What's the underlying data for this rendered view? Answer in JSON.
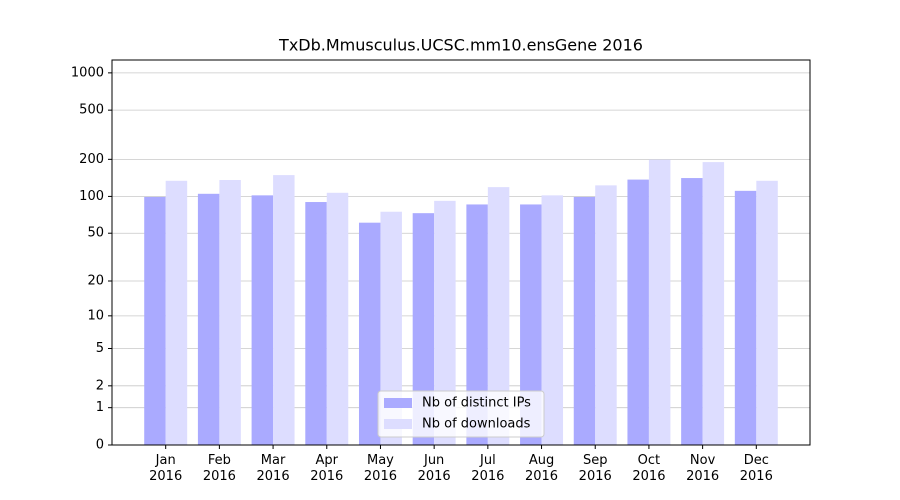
{
  "chart_data": {
    "type": "bar",
    "title": "TxDb.Mmusculus.UCSC.mm10.ensGene 2016",
    "categories": [
      "Jan 2016",
      "Feb 2016",
      "Mar 2016",
      "Apr 2016",
      "May 2016",
      "Jun 2016",
      "Jul 2016",
      "Aug 2016",
      "Sep 2016",
      "Oct 2016",
      "Nov 2016",
      "Dec 2016"
    ],
    "series": [
      {
        "name": "Nb of distinct IPs",
        "color": "#aaaaff",
        "values": [
          99,
          105,
          102,
          90,
          61,
          73,
          86,
          86,
          99,
          137,
          141,
          111
        ]
      },
      {
        "name": "Nb of downloads",
        "color": "#ddddff",
        "values": [
          134,
          136,
          149,
          107,
          75,
          92,
          119,
          102,
          123,
          199,
          190,
          134
        ]
      }
    ],
    "yscale": "log1p",
    "ylim": [
      0,
      1270
    ],
    "yticks": [
      0,
      1,
      2,
      5,
      10,
      20,
      50,
      100,
      200,
      500,
      1000
    ],
    "grid": true,
    "legend": "lower center"
  }
}
